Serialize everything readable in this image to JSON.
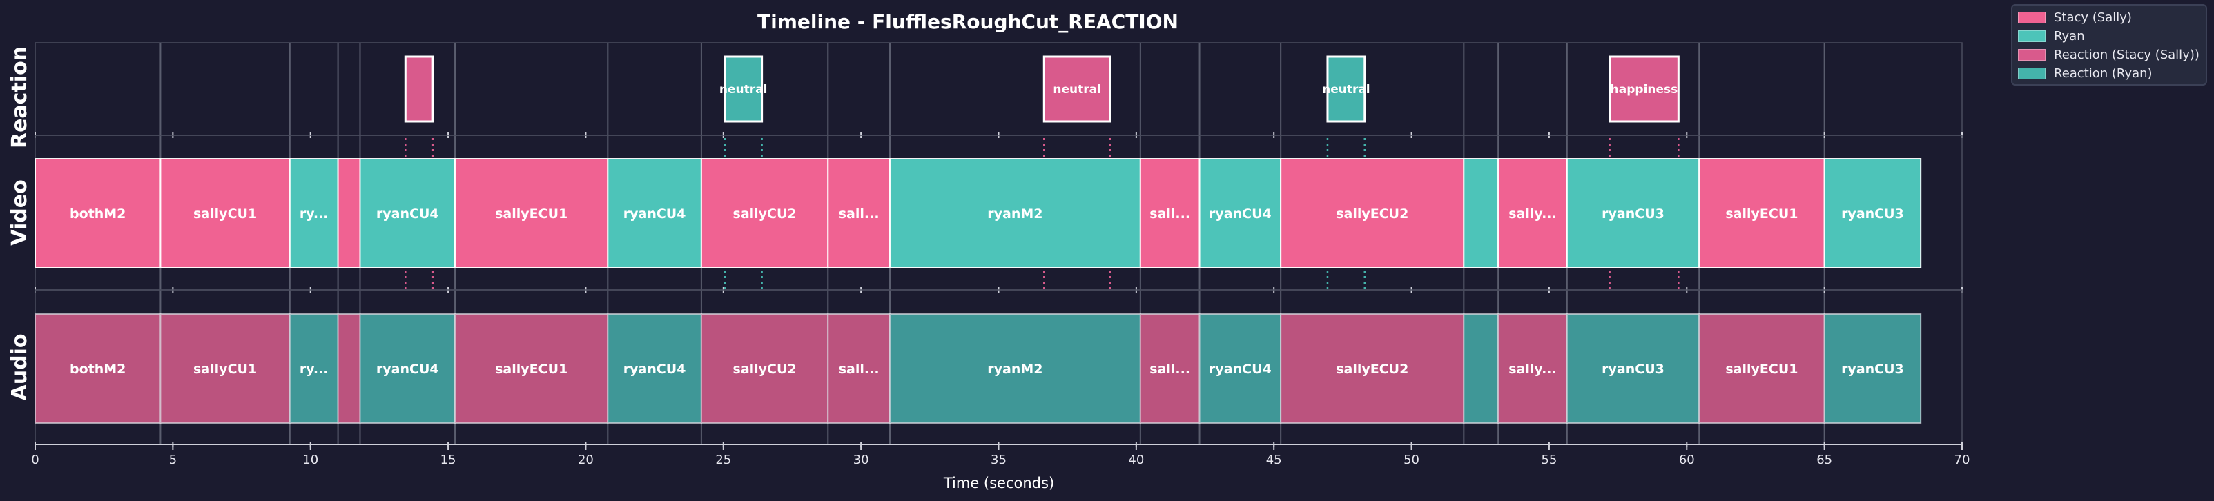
{
  "chart_data": {
    "type": "timeline",
    "title": "Timeline - FlufflesRoughCut_REACTION",
    "xlabel": "Time (seconds)",
    "xlim": [
      0,
      70
    ],
    "xticks": [
      0,
      5,
      10,
      15,
      20,
      25,
      30,
      35,
      40,
      45,
      50,
      55,
      60,
      65,
      70
    ],
    "tracks": [
      "Reaction",
      "Video",
      "Audio"
    ],
    "cut_times": [
      4.55,
      9.25,
      11.0,
      11.8,
      15.25,
      20.8,
      24.2,
      28.8,
      31.05,
      40.15,
      42.3,
      45.25,
      51.9,
      53.15,
      55.65,
      60.45,
      65.0
    ],
    "clips": [
      {
        "start": 0.0,
        "end": 4.55,
        "speaker": "sally",
        "label": "bothM2"
      },
      {
        "start": 4.55,
        "end": 9.25,
        "speaker": "sally",
        "label": "sallyCU1"
      },
      {
        "start": 9.25,
        "end": 11.0,
        "speaker": "ryan",
        "label": "ry..."
      },
      {
        "start": 11.0,
        "end": 11.8,
        "speaker": "sally",
        "label": ""
      },
      {
        "start": 11.8,
        "end": 15.25,
        "speaker": "ryan",
        "label": "ryanCU4"
      },
      {
        "start": 15.25,
        "end": 20.8,
        "speaker": "sally",
        "label": "sallyECU1"
      },
      {
        "start": 20.8,
        "end": 24.2,
        "speaker": "ryan",
        "label": "ryanCU4"
      },
      {
        "start": 24.2,
        "end": 28.8,
        "speaker": "sally",
        "label": "sallyCU2"
      },
      {
        "start": 28.8,
        "end": 31.05,
        "speaker": "sally",
        "label": "sall..."
      },
      {
        "start": 31.05,
        "end": 40.15,
        "speaker": "ryan",
        "label": "ryanM2"
      },
      {
        "start": 40.15,
        "end": 42.3,
        "speaker": "sally",
        "label": "sall..."
      },
      {
        "start": 42.3,
        "end": 45.25,
        "speaker": "ryan",
        "label": "ryanCU4"
      },
      {
        "start": 45.25,
        "end": 51.9,
        "speaker": "sally",
        "label": "sallyECU2"
      },
      {
        "start": 51.9,
        "end": 53.15,
        "speaker": "ryan",
        "label": ""
      },
      {
        "start": 53.15,
        "end": 55.65,
        "speaker": "sally",
        "label": "sally..."
      },
      {
        "start": 55.65,
        "end": 60.45,
        "speaker": "ryan",
        "label": "ryanCU3"
      },
      {
        "start": 60.45,
        "end": 65.0,
        "speaker": "sally",
        "label": "sallyECU1"
      },
      {
        "start": 65.0,
        "end": 68.5,
        "speaker": "ryan",
        "label": "ryanCU3"
      }
    ],
    "reactions": [
      {
        "start": 13.45,
        "end": 14.45,
        "speaker": "sally",
        "label": ""
      },
      {
        "start": 25.05,
        "end": 26.4,
        "speaker": "ryan",
        "label": "neutral"
      },
      {
        "start": 36.65,
        "end": 39.05,
        "speaker": "sally",
        "label": "neutral"
      },
      {
        "start": 46.95,
        "end": 48.3,
        "speaker": "ryan",
        "label": "neutral"
      },
      {
        "start": 57.2,
        "end": 59.7,
        "speaker": "sally",
        "label": "happiness"
      }
    ],
    "legend": {
      "placement": "top-right",
      "entries": [
        {
          "label": "Stacy (Sally)",
          "color": "#f06292"
        },
        {
          "label": "Ryan",
          "color": "#4dc4b9"
        },
        {
          "label": "Reaction (Stacy (Sally))",
          "color": "#d95a8c"
        },
        {
          "label": "Reaction (Ryan)",
          "color": "#44b3ab"
        }
      ]
    },
    "colors": {
      "sally_video": "#f06292",
      "ryan_video": "#4dc4b9",
      "sally_audio": "#bb537e",
      "ryan_audio": "#3f9797",
      "sally_reaction": "#d95a8c",
      "ryan_reaction": "#44b3ab",
      "background": "#1b1b2f"
    }
  }
}
